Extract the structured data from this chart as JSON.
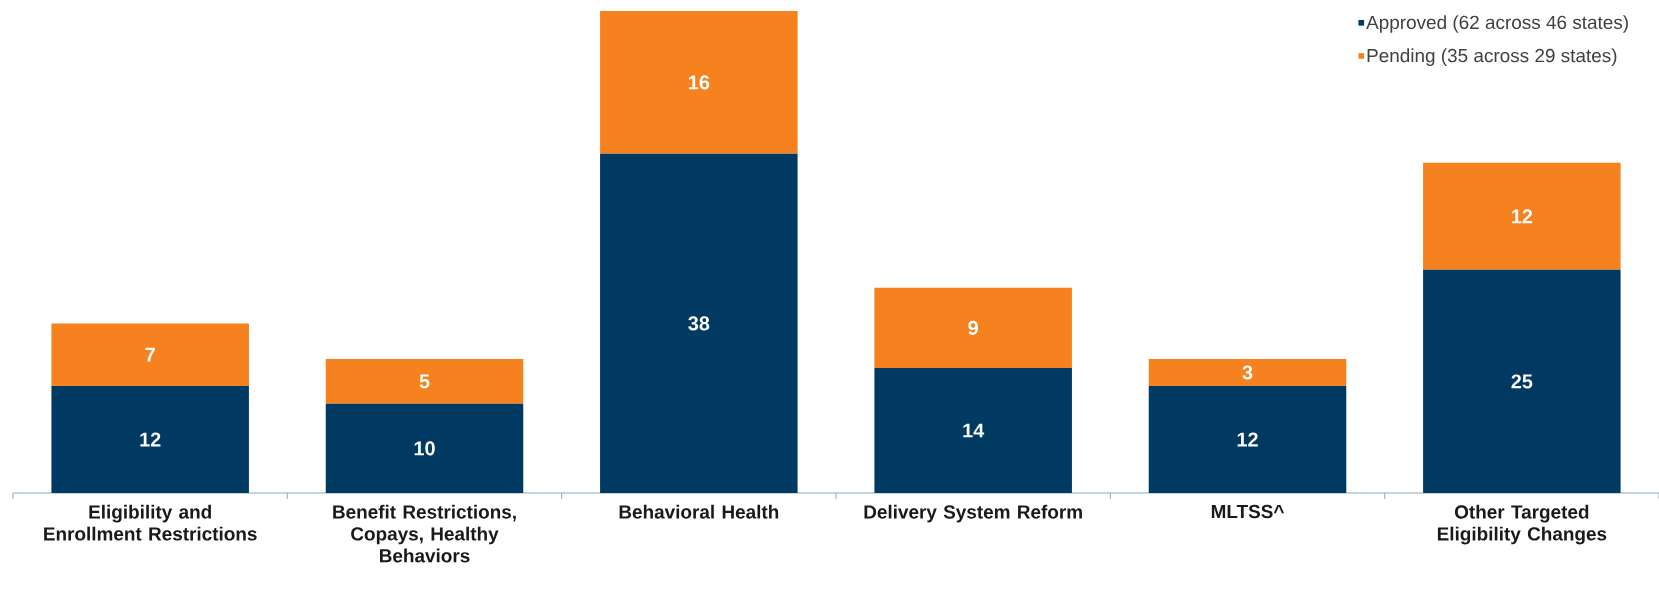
{
  "chart_data": {
    "type": "bar",
    "stacked": true,
    "data_labels": true,
    "legend": "top right",
    "categories": [
      "Eligibility and Enrollment Restrictions",
      "Benefit Restrictions, Copays, Healthy Behaviors",
      "Behavioral Health",
      "Delivery System Reform",
      "MLTSS^",
      "Other Targeted Eligibility Changes"
    ],
    "series": [
      {
        "name": "Approved (62 across 46 states)",
        "color": "#003a63",
        "values": [
          12,
          10,
          38,
          14,
          12,
          25
        ]
      },
      {
        "name": "Pending (35 across 29 states)",
        "color": "#f5821f",
        "values": [
          7,
          5,
          16,
          9,
          3,
          12
        ]
      }
    ]
  }
}
